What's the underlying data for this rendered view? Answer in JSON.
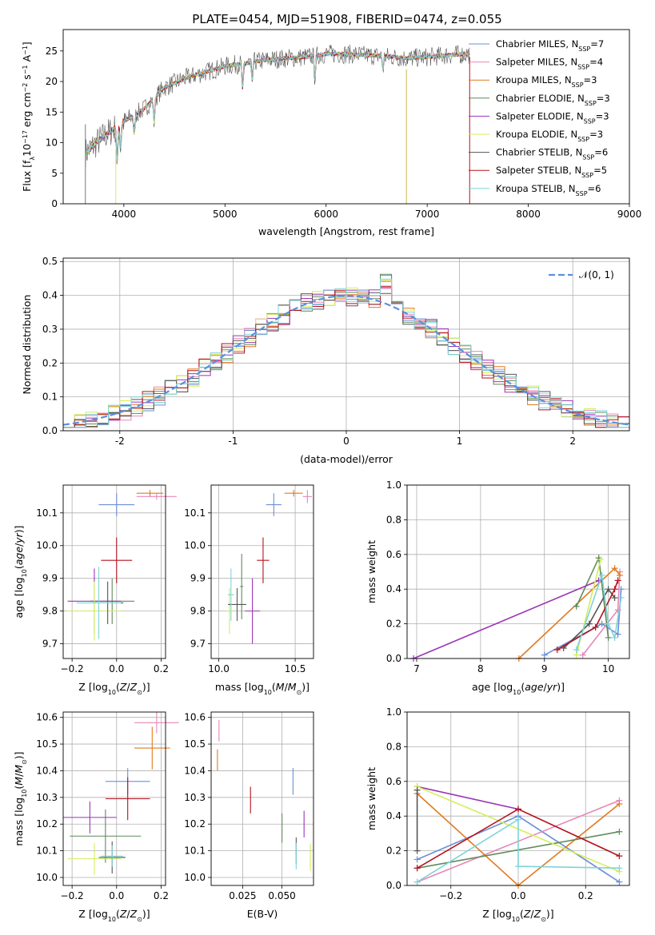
{
  "figure_title": "PLATE=0454, MJD=51908, FIBERID=0474, z=0.055",
  "models": [
    {
      "name": "Chabrier MILES",
      "nssp": "7",
      "color": "#6a8fd6"
    },
    {
      "name": "Salpeter MILES",
      "nssp": "4",
      "color": "#e887b7"
    },
    {
      "name": "Kroupa MILES",
      "nssp": "3",
      "color": "#e07a1f"
    },
    {
      "name": "Chabrier ELODIE",
      "nssp": "3",
      "color": "#5e8c5a"
    },
    {
      "name": "Salpeter ELODIE",
      "nssp": "3",
      "color": "#9b35b5"
    },
    {
      "name": "Kroupa ELODIE",
      "nssp": "3",
      "color": "#d4ee5a"
    },
    {
      "name": "Chabrier STELIB",
      "nssp": "6",
      "color": "#555555"
    },
    {
      "name": "Salpeter STELIB",
      "nssp": "5",
      "color": "#b5121b"
    },
    {
      "name": "Kroupa STELIB",
      "nssp": "6",
      "color": "#7fd3d8"
    }
  ],
  "chart_data": [
    {
      "id": "spectrum",
      "type": "line",
      "xlabel": "wavelength [Angstrom, rest frame]",
      "ylabel": "Flux [f_λ10^-17 erg cm^-2 s^-1 A^-1]",
      "xlim": [
        3400,
        9000
      ],
      "ylim": [
        0,
        28.5
      ],
      "xticks": [
        4000,
        5000,
        6000,
        7000,
        8000,
        9000
      ],
      "yticks": [
        0,
        5,
        10,
        15,
        20,
        25
      ],
      "grid": false,
      "legend": "right",
      "continuum_x": [
        3600,
        3800,
        4000,
        4200,
        4400,
        4600,
        4800,
        5000,
        5200,
        5400,
        5600,
        5800,
        6000,
        6200,
        6400,
        6600,
        6800,
        7000,
        7200,
        7400
      ],
      "continuum_y": [
        8,
        11,
        13.5,
        15.5,
        19,
        20.5,
        21.5,
        22.5,
        23,
        23.5,
        23.8,
        24,
        24.5,
        24.5,
        24.3,
        24.1,
        23.8,
        24,
        24.3,
        24.5
      ],
      "absorption_features": [
        {
          "x": 3934,
          "depth": 6
        },
        {
          "x": 3968,
          "depth": 4
        },
        {
          "x": 4102,
          "depth": 3
        },
        {
          "x": 4300,
          "depth": 4
        },
        {
          "x": 5175,
          "depth": 4
        },
        {
          "x": 5270,
          "depth": 3
        },
        {
          "x": 5890,
          "depth": 3.5
        },
        {
          "x": 6563,
          "depth": 2
        }
      ]
    },
    {
      "id": "residuals",
      "type": "histogram",
      "xlabel": "(data-model)/error",
      "ylabel": "Normed distribution",
      "xlim": [
        -2.5,
        2.5
      ],
      "ylim": [
        0,
        0.51
      ],
      "xticks": [
        -2,
        -1,
        0,
        1,
        2
      ],
      "yticks": [
        0.0,
        0.1,
        0.2,
        0.3,
        0.4,
        0.5
      ],
      "grid": true,
      "legend": "top-right",
      "reference_label": "𝒩(0, 1)",
      "reference_color": "#5b8fe0"
    },
    {
      "id": "age_vs_Z",
      "type": "scatter",
      "xlabel": "Z [log10(Z/Z⊙)]",
      "ylabel": "age [log10(age/yr)]",
      "xlim": [
        -0.24,
        0.22
      ],
      "ylim": [
        9.655,
        10.185
      ],
      "xticks": [
        -0.2,
        0.0,
        0.2
      ],
      "yticks": [
        9.7,
        9.8,
        9.9,
        10.0,
        10.1
      ],
      "grid": true,
      "points": [
        {
          "model": 0,
          "x": 0.0,
          "y": 10.125,
          "xerr": 0.08,
          "yerr": 0.035
        },
        {
          "model": 1,
          "x": 0.18,
          "y": 10.15,
          "xerr": 0.09,
          "yerr": 0.01
        },
        {
          "model": 2,
          "x": 0.15,
          "y": 10.16,
          "xerr": 0.06,
          "yerr": 0.01
        },
        {
          "model": 3,
          "x": -0.02,
          "y": 9.83,
          "xerr": 0.1,
          "yerr": 0.07
        },
        {
          "model": 4,
          "x": -0.1,
          "y": 9.83,
          "xerr": 0.12,
          "yerr": 0.1
        },
        {
          "model": 5,
          "x": -0.1,
          "y": 9.8,
          "xerr": 0.12,
          "yerr": 0.09
        },
        {
          "model": 6,
          "x": -0.04,
          "y": 9.825,
          "xerr": 0.07,
          "yerr": 0.065
        },
        {
          "model": 7,
          "x": 0.0,
          "y": 9.955,
          "xerr": 0.07,
          "yerr": 0.07
        },
        {
          "model": 8,
          "x": -0.08,
          "y": 9.825,
          "xerr": 0.1,
          "yerr": 0.11
        }
      ]
    },
    {
      "id": "age_vs_mass",
      "type": "scatter",
      "xlabel": "mass [log10(M/M⊙)]",
      "ylabel": "",
      "xlim": [
        9.95,
        10.62
      ],
      "ylim": [
        9.655,
        10.185
      ],
      "xticks": [
        10.0,
        10.5
      ],
      "yticks": [
        9.7,
        9.8,
        9.9,
        10.0,
        10.1
      ],
      "grid": true,
      "points": [
        {
          "model": 0,
          "x": 10.36,
          "y": 10.125,
          "xerr": 0.05,
          "yerr": 0.035
        },
        {
          "model": 1,
          "x": 10.58,
          "y": 10.15,
          "xerr": 0.03,
          "yerr": 0.02
        },
        {
          "model": 2,
          "x": 10.49,
          "y": 10.16,
          "xerr": 0.06,
          "yerr": 0.01
        },
        {
          "model": 3,
          "x": 10.15,
          "y": 9.875,
          "xerr": 0.01,
          "yerr": 0.1
        },
        {
          "model": 4,
          "x": 10.22,
          "y": 9.8,
          "xerr": 0.05,
          "yerr": 0.1
        },
        {
          "model": 5,
          "x": 10.07,
          "y": 9.8,
          "xerr": 0.02,
          "yerr": 0.07
        },
        {
          "model": 6,
          "x": 10.12,
          "y": 9.82,
          "xerr": 0.06,
          "yerr": 0.05
        },
        {
          "model": 7,
          "x": 10.29,
          "y": 9.955,
          "xerr": 0.04,
          "yerr": 0.07
        },
        {
          "model": 8,
          "x": 10.08,
          "y": 9.85,
          "xerr": 0.02,
          "yerr": 0.08
        }
      ]
    },
    {
      "id": "weight_vs_age",
      "type": "line",
      "xlabel": "age [log10(age/yr)]",
      "ylabel": "mass weight",
      "xlim": [
        6.85,
        10.33
      ],
      "ylim": [
        0,
        1.0
      ],
      "xticks": [
        7,
        8,
        9,
        10
      ],
      "yticks": [
        0.0,
        0.2,
        0.4,
        0.6,
        0.8,
        1.0
      ],
      "grid": true,
      "series": [
        {
          "model": 0,
          "x": [
            9.0,
            9.9,
            10.15,
            10.2
          ],
          "y": [
            0.02,
            0.2,
            0.14,
            0.4
          ]
        },
        {
          "model": 1,
          "x": [
            9.6,
            10.15,
            10.18
          ],
          "y": [
            0.02,
            0.28,
            0.5
          ]
        },
        {
          "model": 2,
          "x": [
            8.6,
            10.1,
            10.18
          ],
          "y": [
            0.0,
            0.52,
            0.48
          ]
        },
        {
          "model": 3,
          "x": [
            9.5,
            9.85,
            10.0
          ],
          "y": [
            0.3,
            0.58,
            0.12
          ]
        },
        {
          "model": 4,
          "x": [
            6.95,
            9.85
          ],
          "y": [
            0.0,
            0.45
          ]
        },
        {
          "model": 5,
          "x": [
            9.5,
            9.88
          ],
          "y": [
            0.02,
            0.57
          ]
        },
        {
          "model": 6,
          "x": [
            9.3,
            9.7,
            10.0,
            10.1
          ],
          "y": [
            0.06,
            0.2,
            0.4,
            0.35
          ]
        },
        {
          "model": 7,
          "x": [
            9.2,
            9.8,
            10.1,
            10.15
          ],
          "y": [
            0.05,
            0.18,
            0.4,
            0.45
          ]
        },
        {
          "model": 8,
          "x": [
            9.5,
            9.9,
            10.0,
            10.1,
            10.2
          ],
          "y": [
            0.05,
            0.48,
            0.2,
            0.12,
            0.35
          ]
        }
      ]
    },
    {
      "id": "mass_vs_Z",
      "type": "scatter",
      "xlabel": "Z [log10(Z/Z⊙)]",
      "ylabel": "mass [log10(M/M⊙)]",
      "xlim": [
        -0.24,
        0.22
      ],
      "ylim": [
        9.97,
        10.62
      ],
      "xticks": [
        -0.2,
        0.0,
        0.2
      ],
      "yticks": [
        10.0,
        10.1,
        10.2,
        10.3,
        10.4,
        10.5,
        10.6
      ],
      "grid": true,
      "points": [
        {
          "model": 0,
          "x": 0.05,
          "y": 10.36,
          "xerr": 0.1,
          "yerr": 0.05
        },
        {
          "model": 1,
          "x": 0.18,
          "y": 10.58,
          "xerr": 0.1,
          "yerr": 0.04
        },
        {
          "model": 2,
          "x": 0.16,
          "y": 10.485,
          "xerr": 0.08,
          "yerr": 0.08
        },
        {
          "model": 3,
          "x": -0.05,
          "y": 10.155,
          "xerr": 0.16,
          "yerr": 0.1
        },
        {
          "model": 4,
          "x": -0.12,
          "y": 10.225,
          "xerr": 0.12,
          "yerr": 0.06
        },
        {
          "model": 5,
          "x": -0.1,
          "y": 10.07,
          "xerr": 0.12,
          "yerr": 0.06
        },
        {
          "model": 6,
          "x": -0.02,
          "y": 10.075,
          "xerr": 0.06,
          "yerr": 0.06
        },
        {
          "model": 7,
          "x": 0.05,
          "y": 10.295,
          "xerr": 0.1,
          "yerr": 0.08
        },
        {
          "model": 8,
          "x": -0.02,
          "y": 10.08,
          "xerr": 0.05,
          "yerr": 0.04
        }
      ]
    },
    {
      "id": "mass_vs_EBV",
      "type": "scatter",
      "xlabel": "E(B-V)",
      "ylabel": "",
      "xlim": [
        0.005,
        0.07
      ],
      "ylim": [
        9.97,
        10.62
      ],
      "xticks": [
        0.025,
        0.05
      ],
      "yticks": [
        10.0,
        10.1,
        10.2,
        10.3,
        10.4,
        10.5,
        10.6
      ],
      "grid": true,
      "points": [
        {
          "model": 0,
          "x": 0.057,
          "y": 10.36,
          "xerr": 0,
          "yerr": 0.05
        },
        {
          "model": 1,
          "x": 0.01,
          "y": 10.55,
          "xerr": 0,
          "yerr": 0.04
        },
        {
          "model": 2,
          "x": 0.009,
          "y": 10.44,
          "xerr": 0,
          "yerr": 0.04
        },
        {
          "model": 3,
          "x": 0.05,
          "y": 10.185,
          "xerr": 0,
          "yerr": 0.055
        },
        {
          "model": 4,
          "x": 0.064,
          "y": 10.2,
          "xerr": 0,
          "yerr": 0.05
        },
        {
          "model": 5,
          "x": 0.068,
          "y": 10.075,
          "xerr": 0,
          "yerr": 0.05
        },
        {
          "model": 6,
          "x": 0.059,
          "y": 10.1,
          "xerr": 0,
          "yerr": 0.05
        },
        {
          "model": 7,
          "x": 0.03,
          "y": 10.29,
          "xerr": 0,
          "yerr": 0.05
        },
        {
          "model": 8,
          "x": 0.059,
          "y": 10.08,
          "xerr": 0,
          "yerr": 0.05
        }
      ]
    },
    {
      "id": "weight_vs_Z",
      "type": "line",
      "xlabel": "Z [log10(Z/Z⊙)]",
      "ylabel": "mass weight",
      "xlim": [
        -0.33,
        0.33
      ],
      "ylim": [
        0,
        1.0
      ],
      "xticks": [
        -0.2,
        0.0,
        0.2
      ],
      "yticks": [
        0.0,
        0.2,
        0.4,
        0.6,
        0.8,
        1.0
      ],
      "grid": true,
      "series": [
        {
          "model": 0,
          "x": [
            -0.3,
            0.0,
            0.3
          ],
          "y": [
            0.15,
            0.4,
            0.02
          ]
        },
        {
          "model": 1,
          "x": [
            -0.3,
            0.3
          ],
          "y": [
            0.02,
            0.49
          ]
        },
        {
          "model": 2,
          "x": [
            -0.3,
            0.0,
            0.3
          ],
          "y": [
            0.53,
            0.0,
            0.47
          ]
        },
        {
          "model": 3,
          "x": [
            -0.3,
            0.3
          ],
          "y": [
            0.1,
            0.31
          ]
        },
        {
          "model": 4,
          "x": [
            -0.3,
            0.0
          ],
          "y": [
            0.57,
            0.44
          ]
        },
        {
          "model": 5,
          "x": [
            -0.3,
            0.3
          ],
          "y": [
            0.57,
            0.08
          ]
        },
        {
          "model": 6,
          "x": [
            -0.3,
            -0.3
          ],
          "y": [
            0.2,
            0.55
          ]
        },
        {
          "model": 7,
          "x": [
            -0.3,
            0.0,
            0.3
          ],
          "y": [
            0.1,
            0.44,
            0.17
          ]
        },
        {
          "model": 8,
          "x": [
            -0.3,
            0.0,
            0.0,
            0.3
          ],
          "y": [
            0.02,
            0.38,
            0.11,
            0.1
          ]
        }
      ]
    }
  ]
}
